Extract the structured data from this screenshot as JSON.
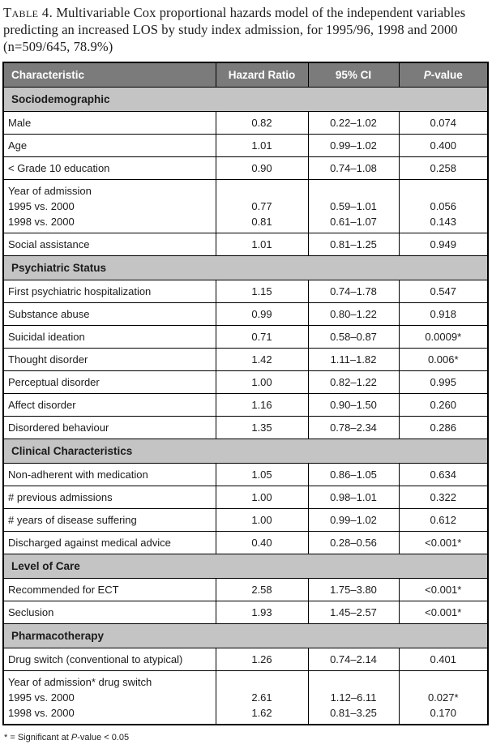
{
  "title": {
    "label": "Table 4.",
    "text": "Multivariable Cox proportional hazards model of the independent variables predicting an increased LOS by study index admission, for 1995/96, 1998 and 2000 (n=509/645, 78.9%)"
  },
  "footnote": "* = Significant at P-value < 0.05",
  "colors": {
    "header_bg": "#7b7b7b",
    "header_text": "#ffffff",
    "section_bg": "#c4c4c4",
    "border": "#000000"
  },
  "table": {
    "columns": [
      "Characteristic",
      "Hazard Ratio",
      "95% CI",
      "P-value"
    ],
    "sections": [
      {
        "header": "Sociodemographic",
        "rows": [
          {
            "label": [
              "Male"
            ],
            "hr": [
              "0.82"
            ],
            "ci": [
              "0.22–1.02"
            ],
            "p": [
              "0.074"
            ]
          },
          {
            "label": [
              "Age"
            ],
            "hr": [
              "1.01"
            ],
            "ci": [
              "0.99–1.02"
            ],
            "p": [
              "0.400"
            ]
          },
          {
            "label": [
              "< Grade 10 education"
            ],
            "hr": [
              "0.90"
            ],
            "ci": [
              "0.74–1.08"
            ],
            "p": [
              "0.258"
            ]
          },
          {
            "label": [
              "Year of admission",
              "1995 vs. 2000",
              "1998 vs. 2000"
            ],
            "hr": [
              "",
              "0.77",
              "0.81"
            ],
            "ci": [
              "",
              "0.59–1.01",
              "0.61–1.07"
            ],
            "p": [
              "",
              "0.056",
              "0.143"
            ]
          },
          {
            "label": [
              "Social assistance"
            ],
            "hr": [
              "1.01"
            ],
            "ci": [
              "0.81–1.25"
            ],
            "p": [
              "0.949"
            ]
          }
        ]
      },
      {
        "header": "Psychiatric Status",
        "rows": [
          {
            "label": [
              "First psychiatric hospitalization"
            ],
            "hr": [
              "1.15"
            ],
            "ci": [
              "0.74–1.78"
            ],
            "p": [
              "0.547"
            ]
          },
          {
            "label": [
              "Substance abuse"
            ],
            "hr": [
              "0.99"
            ],
            "ci": [
              "0.80–1.22"
            ],
            "p": [
              "0.918"
            ]
          },
          {
            "label": [
              "Suicidal ideation"
            ],
            "hr": [
              "0.71"
            ],
            "ci": [
              "0.58–0.87"
            ],
            "p": [
              "0.0009*"
            ]
          },
          {
            "label": [
              "Thought disorder"
            ],
            "hr": [
              "1.42"
            ],
            "ci": [
              "1.11–1.82"
            ],
            "p": [
              "0.006*"
            ]
          },
          {
            "label": [
              "Perceptual disorder"
            ],
            "hr": [
              "1.00"
            ],
            "ci": [
              "0.82–1.22"
            ],
            "p": [
              "0.995"
            ]
          },
          {
            "label": [
              "Affect disorder"
            ],
            "hr": [
              "1.16"
            ],
            "ci": [
              "0.90–1.50"
            ],
            "p": [
              "0.260"
            ]
          },
          {
            "label": [
              "Disordered behaviour"
            ],
            "hr": [
              "1.35"
            ],
            "ci": [
              "0.78–2.34"
            ],
            "p": [
              "0.286"
            ]
          }
        ]
      },
      {
        "header": "Clinical Characteristics",
        "rows": [
          {
            "label": [
              "Non-adherent with medication"
            ],
            "hr": [
              "1.05"
            ],
            "ci": [
              "0.86–1.05"
            ],
            "p": [
              "0.634"
            ]
          },
          {
            "label": [
              "# previous admissions"
            ],
            "hr": [
              "1.00"
            ],
            "ci": [
              "0.98–1.01"
            ],
            "p": [
              "0.322"
            ]
          },
          {
            "label": [
              "# years of disease suffering"
            ],
            "hr": [
              "1.00"
            ],
            "ci": [
              "0.99–1.02"
            ],
            "p": [
              "0.612"
            ]
          },
          {
            "label": [
              "Discharged against medical advice"
            ],
            "hr": [
              "0.40"
            ],
            "ci": [
              "0.28–0.56"
            ],
            "p": [
              "<0.001*"
            ]
          }
        ]
      },
      {
        "header": "Level of Care",
        "rows": [
          {
            "label": [
              "Recommended for ECT"
            ],
            "hr": [
              "2.58"
            ],
            "ci": [
              "1.75–3.80"
            ],
            "p": [
              "<0.001*"
            ]
          },
          {
            "label": [
              "Seclusion"
            ],
            "hr": [
              "1.93"
            ],
            "ci": [
              "1.45–2.57"
            ],
            "p": [
              "<0.001*"
            ]
          }
        ]
      },
      {
        "header": "Pharmacotherapy",
        "rows": [
          {
            "label": [
              "Drug switch (conventional to atypical)"
            ],
            "hr": [
              "1.26"
            ],
            "ci": [
              "0.74–2.14"
            ],
            "p": [
              "0.401"
            ]
          },
          {
            "label": [
              "Year of admission* drug switch",
              "1995 vs. 2000",
              "1998 vs. 2000"
            ],
            "hr": [
              "",
              "2.61",
              "1.62"
            ],
            "ci": [
              "",
              "1.12–6.11",
              "0.81–3.25"
            ],
            "p": [
              "",
              "0.027*",
              "0.170"
            ]
          }
        ]
      }
    ]
  }
}
